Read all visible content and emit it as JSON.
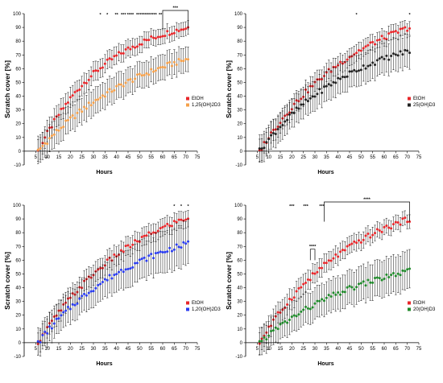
{
  "colors": {
    "ethanol": "#e8262a",
    "axis": "#000000",
    "errorbar": "#000000"
  },
  "chart_data": [
    {
      "type": "scatter",
      "xlabel": "Hours",
      "ylabel": "Scratch cover [%]",
      "xlim": [
        0,
        75
      ],
      "ylim": [
        -10,
        100
      ],
      "x_ticks": [
        "5",
        "10",
        "15",
        "20",
        "25",
        "30",
        "35",
        "40",
        "45",
        "50",
        "55",
        "60",
        "65",
        "70",
        "75"
      ],
      "y_ticks": [
        "-10",
        "0",
        "10",
        "20",
        "30",
        "40",
        "50",
        "60",
        "70",
        "80",
        "90",
        "100"
      ],
      "legend_position": "right",
      "series": [
        {
          "name": "EtOH",
          "color": "#e8262a",
          "start": [
            6,
            0
          ],
          "end": [
            71,
            90
          ],
          "curve": 2.2,
          "err_start": 8,
          "err_end": 5
        },
        {
          "name": "1,25(OH)2D3",
          "color": "#f5a04a",
          "start": [
            6,
            0
          ],
          "end": [
            71,
            67
          ],
          "curve": 1.4,
          "err_start": 10,
          "err_end": 9
        }
      ],
      "significance": [
        {
          "x": 33,
          "label": "*"
        },
        {
          "x": 36,
          "label": "*"
        },
        {
          "x": 40,
          "label": "**"
        },
        {
          "x": 43,
          "label": "***"
        },
        {
          "x": 46,
          "label": "****"
        },
        {
          "x": 50,
          "label": "****"
        },
        {
          "x": 53,
          "label": "****"
        },
        {
          "x": 56,
          "label": "****"
        },
        {
          "x": 59,
          "label": "**"
        }
      ],
      "brackets": [
        {
          "x1": 60,
          "x2": 71,
          "label": "***"
        }
      ]
    },
    {
      "type": "scatter",
      "xlabel": "Hours",
      "ylabel": "Scratch cover [%]",
      "xlim": [
        0,
        75
      ],
      "ylim": [
        -10,
        100
      ],
      "x_ticks": [
        "5",
        "10",
        "15",
        "20",
        "25",
        "30",
        "35",
        "40",
        "45",
        "50",
        "55",
        "60",
        "65",
        "70",
        "75"
      ],
      "y_ticks": [
        "-10",
        "0",
        "10",
        "20",
        "30",
        "40",
        "50",
        "60",
        "70",
        "80",
        "90",
        "100"
      ],
      "legend_position": "right",
      "series": [
        {
          "name": "EtOH",
          "color": "#e8262a",
          "start": [
            6,
            0
          ],
          "end": [
            71,
            90
          ],
          "curve": 1.5,
          "err_start": 8,
          "err_end": 5
        },
        {
          "name": "25(OH)D3",
          "color": "#222222",
          "start": [
            6,
            0
          ],
          "end": [
            71,
            73
          ],
          "curve": 1.6,
          "err_start": 10,
          "err_end": 12
        }
      ],
      "significance": [
        {
          "x": 48,
          "label": "*"
        },
        {
          "x": 71,
          "label": "*"
        }
      ],
      "brackets": []
    },
    {
      "type": "scatter",
      "xlabel": "Hours",
      "ylabel": "Scratch cover [%]",
      "xlim": [
        0,
        75
      ],
      "ylim": [
        -10,
        100
      ],
      "x_ticks": [
        "5",
        "10",
        "15",
        "20",
        "25",
        "30",
        "35",
        "40",
        "45",
        "50",
        "55",
        "60",
        "65",
        "70",
        "75"
      ],
      "y_ticks": [
        "-10",
        "0",
        "10",
        "20",
        "30",
        "40",
        "50",
        "60",
        "70",
        "80",
        "90",
        "100"
      ],
      "legend_position": "right",
      "series": [
        {
          "name": "EtOH",
          "color": "#e8262a",
          "start": [
            6,
            0
          ],
          "end": [
            71,
            91
          ],
          "curve": 1.5,
          "err_start": 8,
          "err_end": 6
        },
        {
          "name": "1,20(OH)2D3",
          "color": "#2a3cf0",
          "start": [
            6,
            0
          ],
          "end": [
            71,
            72
          ],
          "curve": 1.5,
          "err_start": 10,
          "err_end": 16
        }
      ],
      "significance": [
        {
          "x": 65,
          "label": "*"
        },
        {
          "x": 68,
          "label": "*"
        },
        {
          "x": 71,
          "label": "*"
        }
      ],
      "brackets": []
    },
    {
      "type": "scatter",
      "xlabel": "Hours",
      "ylabel": "Scratch cover [%]",
      "xlim": [
        0,
        75
      ],
      "ylim": [
        -10,
        100
      ],
      "x_ticks": [
        "5",
        "10",
        "15",
        "20",
        "25",
        "30",
        "35",
        "40",
        "45",
        "50",
        "55",
        "60",
        "65",
        "70",
        "75"
      ],
      "y_ticks": [
        "-10",
        "0",
        "10",
        "20",
        "30",
        "40",
        "50",
        "60",
        "70",
        "80",
        "90",
        "100"
      ],
      "legend_position": "right",
      "series": [
        {
          "name": "EtOH",
          "color": "#e8262a",
          "start": [
            6,
            0
          ],
          "end": [
            71,
            90
          ],
          "curve": 1.6,
          "err_start": 8,
          "err_end": 5
        },
        {
          "name": "20(OH)D3",
          "color": "#1f8a2a",
          "start": [
            6,
            0
          ],
          "end": [
            71,
            52
          ],
          "curve": 1.4,
          "err_start": 10,
          "err_end": 14
        }
      ],
      "significance": [
        {
          "x": 20,
          "label": "***"
        },
        {
          "x": 26,
          "label": "***"
        },
        {
          "x": 33,
          "label": "***"
        }
      ],
      "brackets": [
        {
          "x1": 28,
          "x2": 30,
          "label": "****",
          "low": true
        },
        {
          "x1": 34,
          "x2": 71,
          "label": "****"
        }
      ]
    }
  ]
}
